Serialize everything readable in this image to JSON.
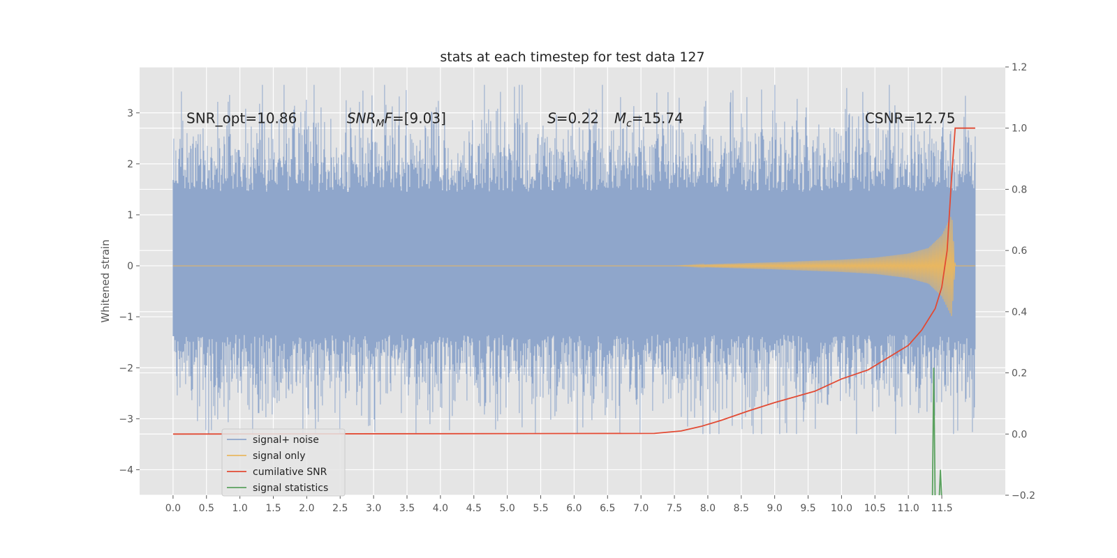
{
  "chart_data": {
    "type": "line",
    "title": "stats at each timestep for test data 127",
    "xlabel": "",
    "ylabel": "Whitened strain",
    "y2label": "",
    "xlim": [
      -0.5,
      12.45
    ],
    "ylim": [
      -4.5,
      3.9
    ],
    "y2lim": [
      -0.2,
      1.2
    ],
    "x_ticks": [
      0.0,
      0.5,
      1.0,
      1.5,
      2.0,
      2.5,
      3.0,
      3.5,
      4.0,
      4.5,
      5.0,
      5.5,
      6.0,
      6.5,
      7.0,
      7.5,
      8.0,
      8.5,
      9.0,
      9.5,
      10.0,
      10.5,
      11.0,
      11.5
    ],
    "x_tick_labels": [
      "0.0",
      "0.5",
      "1.0",
      "1.5",
      "2.0",
      "2.5",
      "3.0",
      "3.5",
      "4.0",
      "4.5",
      "5.0",
      "5.5",
      "6.0",
      "6.5",
      "7.0",
      "7.5",
      "8.0",
      "8.5",
      "9.0",
      "9.5",
      "10.0",
      "10.5",
      "11.0",
      "11.5"
    ],
    "y_ticks": [
      3,
      2,
      1,
      0,
      -1,
      -2,
      -3,
      -4
    ],
    "y_tick_labels": [
      "3",
      "2",
      "1",
      "0",
      "−1",
      "−2",
      "−3",
      "−4"
    ],
    "y2_ticks": [
      1.2,
      1.0,
      0.8,
      0.6,
      0.4,
      0.2,
      0.0,
      -0.2
    ],
    "y2_tick_labels": [
      "1.2",
      "1.0",
      "0.8",
      "0.6",
      "0.4",
      "0.2",
      "0.0",
      "−0.2"
    ],
    "grid": true,
    "legend_position": "lower-left",
    "annotations": [
      {
        "text": "SNR_opt=10.86",
        "x": 0.2,
        "y": 2.8
      },
      {
        "text": "SNR_MF=[9.03]",
        "x": 2.6,
        "y": 2.8
      },
      {
        "text": "S=0.22",
        "x": 5.6,
        "y": 2.8
      },
      {
        "text": "M_c=15.74",
        "x": 6.6,
        "y": 2.8
      },
      {
        "text": "CSNR=12.75",
        "x": 10.35,
        "y": 2.8
      }
    ],
    "series": [
      {
        "name": "signal+ noise",
        "color": "#8fa6cb",
        "kind": "noise",
        "axis": "left",
        "x_range": [
          0.0,
          12.0
        ],
        "envelope": {
          "typical_max": 1.8,
          "typical_min": -1.6,
          "peak_max": 3.55,
          "peak_min": -3.3
        }
      },
      {
        "name": "signal only",
        "color": "#e9b760",
        "kind": "chirp",
        "axis": "left",
        "x_range": [
          0.0,
          12.0
        ],
        "envelope_x": [
          0.0,
          7.5,
          8.0,
          9.0,
          10.0,
          10.5,
          11.0,
          11.3,
          11.5,
          11.65,
          11.7,
          12.0
        ],
        "envelope_amp": [
          0.0,
          0.0,
          0.03,
          0.07,
          0.12,
          0.16,
          0.24,
          0.35,
          0.6,
          1.0,
          0.0,
          0.0
        ]
      },
      {
        "name": "cumilative SNR",
        "color": "#e24a33",
        "axis": "right",
        "x": [
          0.0,
          7.2,
          7.6,
          7.9,
          8.2,
          8.6,
          9.0,
          9.6,
          10.0,
          10.4,
          10.7,
          11.0,
          11.2,
          11.4,
          11.5,
          11.58,
          11.65,
          11.7,
          12.0
        ],
        "y": [
          0.0,
          0.002,
          0.01,
          0.025,
          0.045,
          0.075,
          0.103,
          0.14,
          0.18,
          0.21,
          0.25,
          0.29,
          0.34,
          0.41,
          0.48,
          0.6,
          0.85,
          1.0,
          1.0
        ]
      },
      {
        "name": "signal statistics",
        "color": "#5aa15e",
        "axis": "left",
        "x": [
          11.36,
          11.38,
          11.4,
          11.42,
          11.44,
          11.46,
          11.48,
          11.5,
          11.52
        ],
        "y": [
          -4.6,
          -2.0,
          -4.6,
          -4.6,
          -4.6,
          -4.6,
          -4.0,
          -4.6,
          -4.6
        ]
      }
    ]
  }
}
